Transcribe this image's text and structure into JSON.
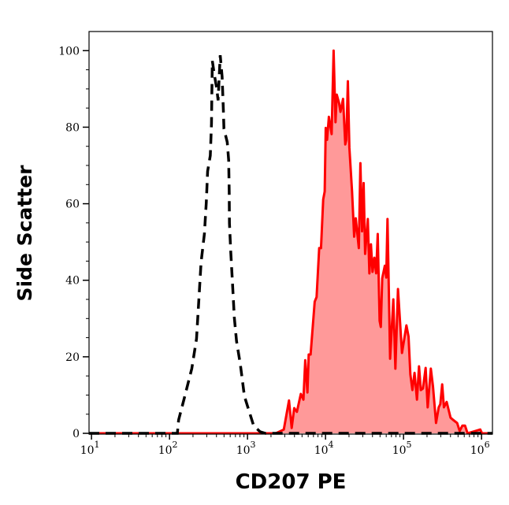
{
  "chart_data": {
    "type": "area",
    "title": "",
    "xlabel": "CD207 PE",
    "ylabel": "Side Scatter",
    "x_scale": "log",
    "xlim": [
      9.3,
      1380000
    ],
    "ylim": [
      -0.2,
      105
    ],
    "grid": false,
    "legend": "none",
    "x_ticks": [
      {
        "base": "10",
        "exp": "1",
        "value": 10
      },
      {
        "base": "10",
        "exp": "2",
        "value": 100
      },
      {
        "base": "10",
        "exp": "3",
        "value": 1000
      },
      {
        "base": "10",
        "exp": "4",
        "value": 10000
      },
      {
        "base": "10",
        "exp": "5",
        "value": 100000
      },
      {
        "base": "10",
        "exp": "6",
        "value": 1000000
      }
    ],
    "y_ticks": [
      "0",
      "20",
      "40",
      "60",
      "80",
      "100"
    ],
    "series": [
      {
        "style": "dashed-line",
        "color": "#000000",
        "x": [
          9.3,
          126,
          131,
          153,
          193,
          222,
          235,
          254,
          280,
          296,
          308,
          333,
          345,
          349,
          354,
          374,
          404,
          420,
          447,
          472,
          490,
          498,
          550,
          573,
          582,
          586,
          610,
          643,
          678,
          723,
          811,
          912,
          1197,
          1452,
          1694,
          1380000
        ],
        "y": [
          0,
          0,
          3.5,
          8.8,
          16.9,
          24.7,
          33.3,
          44.7,
          52.1,
          60.3,
          68.5,
          72.6,
          80.9,
          89.1,
          97.3,
          94,
          89.9,
          87,
          98.8,
          93.2,
          84.4,
          79.6,
          76.1,
          71.4,
          63.2,
          54.9,
          47.3,
          39.1,
          30.2,
          24.1,
          17.9,
          9.7,
          2,
          0.4,
          0,
          0
        ]
      },
      {
        "style": "filled-area",
        "color": "#ff0000",
        "fill": "#ff9999",
        "x": [
          9.3,
          2310,
          2920,
          3400,
          3680,
          3970,
          4300,
          4830,
          5210,
          5500,
          5860,
          6090,
          6430,
          7270,
          7690,
          8300,
          8750,
          9330,
          9770,
          10070,
          10470,
          11040,
          11970,
          12700,
          13430,
          13930,
          14860,
          15560,
          16790,
          17900,
          18450,
          19320,
          20230,
          21880,
          23280,
          24380,
          26730,
          27990,
          29380,
          30760,
          32210,
          34830,
          36480,
          38190,
          40090,
          42270,
          44570,
          46670,
          49320,
          51170,
          53330,
          57540,
          59980,
          62370,
          67300,
          73960,
          78700,
          84920,
          95500,
          108900,
          115900,
          122400,
          130000,
          138400,
          148600,
          158100,
          166700,
          177400,
          191900,
          204200,
          223900,
          238200,
          261200,
          282500,
          295800,
          312600,
          329600,
          357300,
          400900,
          432500,
          486400,
          524800,
          567500,
          613800,
          662200,
          961600,
          1016000,
          1380000
        ],
        "y": [
          0,
          0,
          1,
          8.6,
          1.4,
          6.6,
          5.6,
          10.3,
          8.8,
          19.1,
          10.7,
          20.6,
          20.6,
          34.4,
          35.6,
          48.4,
          48.4,
          61.1,
          63.2,
          79.8,
          76.7,
          82.7,
          78.2,
          100,
          81.3,
          88.5,
          86.4,
          84,
          87.4,
          75.5,
          76.7,
          92,
          74.7,
          63.2,
          51.4,
          56.2,
          48.4,
          70.6,
          52.8,
          65.4,
          46.9,
          56,
          41.8,
          49.4,
          42.2,
          45.9,
          41.8,
          52.1,
          29.4,
          27.8,
          40.5,
          43.8,
          40.7,
          56,
          19.5,
          35,
          16.9,
          37.7,
          21,
          28.2,
          25.3,
          15.4,
          11.3,
          15.8,
          8.8,
          17.5,
          11.3,
          11.7,
          17.1,
          6.8,
          16.9,
          12.3,
          2.7,
          6.8,
          7.6,
          12.8,
          6.8,
          8.2,
          4.1,
          3.5,
          2.7,
          0.6,
          2,
          2,
          0,
          1,
          0,
          0
        ]
      }
    ]
  }
}
